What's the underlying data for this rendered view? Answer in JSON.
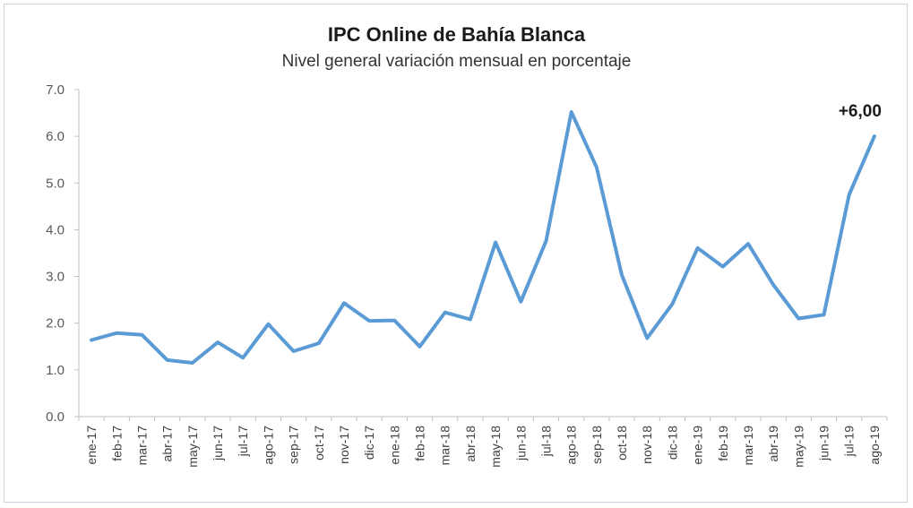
{
  "chart_data": {
    "type": "line",
    "title": "IPC Online de Bahía Blanca",
    "subtitle": "Nivel general variación mensual en porcentaje",
    "xlabel": "",
    "ylabel": "",
    "ylim": [
      0,
      7
    ],
    "yticks": [
      "0.0",
      "1.0",
      "2.0",
      "3.0",
      "4.0",
      "5.0",
      "6.0",
      "7.0"
    ],
    "grid": false,
    "legend": "none",
    "categories": [
      "ene-17",
      "feb-17",
      "mar-17",
      "abr-17",
      "may-17",
      "jun-17",
      "jul-17",
      "ago-17",
      "sep-17",
      "oct-17",
      "nov-17",
      "dic-17",
      "ene-18",
      "feb-18",
      "mar-18",
      "abr-18",
      "may-18",
      "jun-18",
      "jul-18",
      "ago-18",
      "sep-18",
      "oct-18",
      "nov-18",
      "dic-18",
      "ene-19",
      "feb-19",
      "mar-19",
      "abr-19",
      "may-19",
      "jun-19",
      "jul-19",
      "ago-19"
    ],
    "series": [
      {
        "color": "#5b9bd5",
        "values": [
          1.64,
          1.79,
          1.75,
          1.21,
          1.15,
          1.59,
          1.26,
          1.98,
          1.4,
          1.57,
          2.43,
          2.05,
          2.06,
          1.5,
          2.23,
          2.08,
          3.73,
          2.46,
          3.76,
          6.52,
          5.34,
          3.03,
          1.68,
          2.41,
          3.61,
          3.21,
          3.7,
          2.82,
          2.1,
          2.18,
          4.75,
          6.0
        ]
      }
    ],
    "annotations": [
      {
        "category": "ago-19",
        "value": 6.0,
        "text": "+6,00"
      }
    ]
  }
}
